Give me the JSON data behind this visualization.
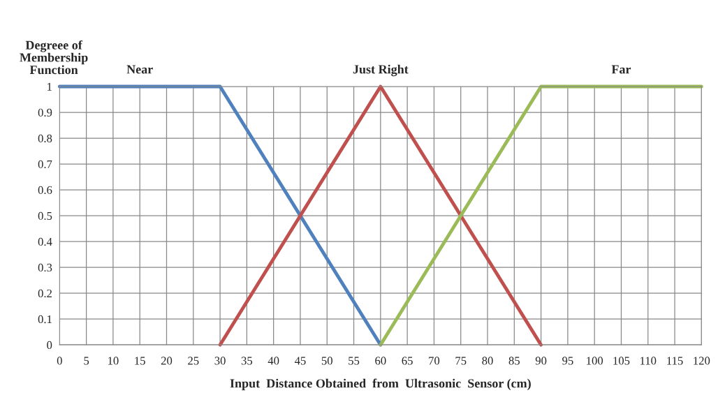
{
  "chart_data": {
    "type": "line",
    "ylabel": "Degreee of\nMembership\nFunction",
    "xlabel": "Input  Distance Obtained  from  Ultrasonic  Sensor (cm)",
    "series": [
      {
        "name": "Near",
        "color": "#4f81bd",
        "x": [
          0,
          30,
          60
        ],
        "values": [
          1,
          1,
          0
        ]
      },
      {
        "name": "Just Right",
        "color": "#c0504d",
        "x": [
          30,
          60,
          90
        ],
        "values": [
          0,
          1,
          0
        ]
      },
      {
        "name": "Far",
        "color": "#9bbb59",
        "x": [
          60,
          90,
          120
        ],
        "values": [
          0,
          1,
          1
        ]
      }
    ],
    "xlim": [
      0,
      120
    ],
    "xticks": [
      0,
      5,
      10,
      15,
      20,
      25,
      30,
      35,
      40,
      45,
      50,
      55,
      60,
      65,
      70,
      75,
      80,
      85,
      90,
      95,
      100,
      105,
      110,
      115,
      120
    ],
    "ylim": [
      0,
      1
    ],
    "yticks": [
      0,
      0.1,
      0.2,
      0.3,
      0.4,
      0.5,
      0.6,
      0.7,
      0.8,
      0.9,
      1
    ],
    "grid": true,
    "legend": false,
    "marker": "none",
    "line_style": "solid"
  }
}
